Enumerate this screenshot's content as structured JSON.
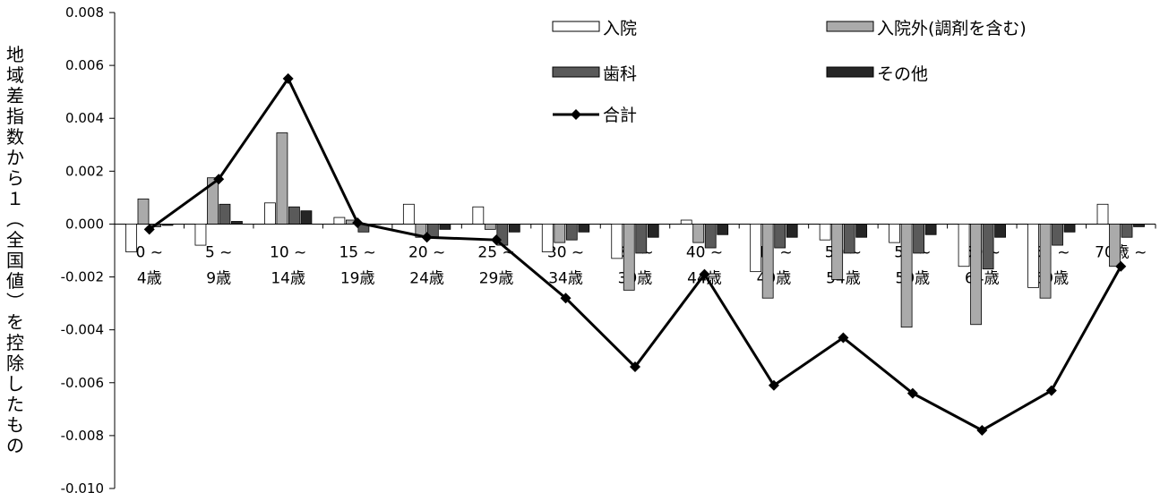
{
  "chart_data": {
    "type": "bar",
    "title": "",
    "xlabel": "",
    "ylabel": "地域差指数から１（全国値）を控除したもの",
    "ylim": [
      -0.01,
      0.008
    ],
    "ytick_labels": [
      "0.008",
      "0.006",
      "0.004",
      "0.002",
      "0.000",
      "-0.002",
      "-0.004",
      "-0.006",
      "-0.008",
      "-0.010"
    ],
    "categories": [
      [
        "0 ~",
        "4歳"
      ],
      [
        "5 ~",
        "9歳"
      ],
      [
        "10 ~",
        "14歳"
      ],
      [
        "15 ~",
        "19歳"
      ],
      [
        "20 ~",
        "24歳"
      ],
      [
        "25 ~",
        "29歳"
      ],
      [
        "30 ~",
        "34歳"
      ],
      [
        "35 ~",
        "39歳"
      ],
      [
        "40 ~",
        "44歳"
      ],
      [
        "45 ~",
        "49歳"
      ],
      [
        "50 ~",
        "54歳"
      ],
      [
        "55 ~",
        "59歳"
      ],
      [
        "60 ~",
        "64歳"
      ],
      [
        "65 ~",
        "69歳"
      ],
      [
        "70歳 ~",
        ""
      ]
    ],
    "series": [
      {
        "name": "入院",
        "kind": "bar",
        "color": "#ffffff",
        "values": [
          -0.00105,
          -0.0008,
          0.0008,
          0.00025,
          0.00075,
          0.00065,
          -0.00105,
          -0.0013,
          0.00015,
          -0.0018,
          -0.0006,
          -0.0007,
          -0.0016,
          -0.0024,
          0.00075
        ]
      },
      {
        "name": "入院外(調剤を含む)",
        "kind": "bar",
        "color": "#aaaaaa",
        "values": [
          0.00095,
          0.00175,
          0.00345,
          0.00015,
          -0.0005,
          -0.0002,
          -0.0007,
          -0.0025,
          -0.0007,
          -0.0028,
          -0.0021,
          -0.0039,
          -0.0038,
          -0.0028,
          -0.0016
        ]
      },
      {
        "name": "歯科",
        "kind": "bar",
        "color": "#5a5a5a",
        "values": [
          -0.0001,
          0.00075,
          0.00065,
          -0.0003,
          -0.0005,
          -0.0008,
          -0.0006,
          -0.0011,
          -0.0009,
          -0.0009,
          -0.0011,
          -0.0011,
          -0.0017,
          -0.0008,
          -0.0005
        ]
      },
      {
        "name": "その他",
        "kind": "bar",
        "color": "#262626",
        "values": [
          -5e-05,
          0.0001,
          0.0005,
          0.0,
          -0.0002,
          -0.0003,
          -0.0003,
          -0.0005,
          -0.0004,
          -0.0005,
          -0.0005,
          -0.0004,
          -0.0005,
          -0.0003,
          -0.0001
        ]
      },
      {
        "name": "合計",
        "kind": "line",
        "color": "#000000",
        "values": [
          -0.0002,
          0.0017,
          0.0055,
          5e-05,
          -0.0005,
          -0.0006,
          -0.0028,
          -0.0054,
          -0.0019,
          -0.0061,
          -0.0043,
          -0.0064,
          -0.0078,
          -0.0063,
          -0.0016
        ]
      }
    ],
    "grid": false,
    "legend_position": "top-right"
  }
}
